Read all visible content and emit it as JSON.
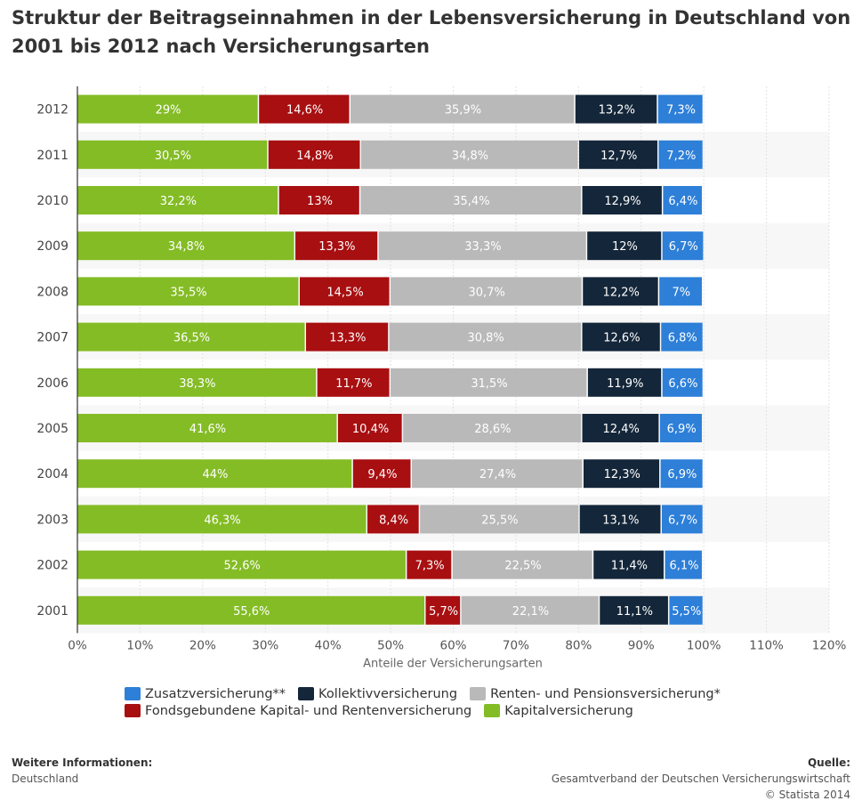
{
  "title": "Struktur der Beitragseinnahmen in der Lebensversicherung in Deutschland von 2001 bis 2012 nach Versicherungsarten",
  "chart_data": {
    "type": "bar",
    "orientation": "horizontal",
    "stacked": true,
    "categories": [
      "2012",
      "2011",
      "2010",
      "2009",
      "2008",
      "2007",
      "2006",
      "2005",
      "2004",
      "2003",
      "2002",
      "2001"
    ],
    "series": [
      {
        "name": "Kapitalversicherung",
        "color": "#84BC25",
        "values": [
          29,
          30.5,
          32.2,
          34.8,
          35.5,
          36.5,
          38.3,
          41.6,
          44,
          46.3,
          52.6,
          55.6
        ],
        "labels": [
          "29%",
          "30,5%",
          "32,2%",
          "34,8%",
          "35,5%",
          "36,5%",
          "38,3%",
          "41,6%",
          "44%",
          "46,3%",
          "52,6%",
          "55,6%"
        ]
      },
      {
        "name": "Fondsgebundene Kapital- und Rentenversicherung",
        "color": "#A80F11",
        "values": [
          14.6,
          14.8,
          13,
          13.3,
          14.5,
          13.3,
          11.7,
          10.4,
          9.4,
          8.4,
          7.3,
          5.7
        ],
        "labels": [
          "14,6%",
          "14,8%",
          "13%",
          "13,3%",
          "14,5%",
          "13,3%",
          "11,7%",
          "10,4%",
          "9,4%",
          "8,4%",
          "7,3%",
          "5,7%"
        ]
      },
      {
        "name": "Renten- und Pensionsversicherung*",
        "color": "#B9B9B9",
        "values": [
          35.9,
          34.8,
          35.4,
          33.3,
          30.7,
          30.8,
          31.5,
          28.6,
          27.4,
          25.5,
          22.5,
          22.1
        ],
        "labels": [
          "35,9%",
          "34,8%",
          "35,4%",
          "33,3%",
          "30,7%",
          "30,8%",
          "31,5%",
          "28,6%",
          "27,4%",
          "25,5%",
          "22,5%",
          "22,1%"
        ]
      },
      {
        "name": "Kollektivversicherung",
        "color": "#142639",
        "values": [
          13.2,
          12.7,
          12.9,
          12,
          12.2,
          12.6,
          11.9,
          12.4,
          12.3,
          13.1,
          11.4,
          11.1
        ],
        "labels": [
          "13,2%",
          "12,7%",
          "12,9%",
          "12%",
          "12,2%",
          "12,6%",
          "11,9%",
          "12,4%",
          "12,3%",
          "13,1%",
          "11,4%",
          "11,1%"
        ]
      },
      {
        "name": "Zusatzversicherung**",
        "color": "#2D7FD8",
        "values": [
          7.3,
          7.2,
          6.4,
          6.7,
          7,
          6.8,
          6.6,
          6.9,
          6.9,
          6.7,
          6.1,
          5.5
        ],
        "labels": [
          "7,3%",
          "7,2%",
          "6,4%",
          "6,7%",
          "7%",
          "6,8%",
          "6,6%",
          "6,9%",
          "6,9%",
          "6,7%",
          "6,1%",
          "5,5%"
        ]
      }
    ],
    "xlabel": "Anteile der Versicherungsarten",
    "ylabel": "",
    "xlim": [
      0,
      120
    ],
    "xticks": [
      "0%",
      "10%",
      "20%",
      "30%",
      "40%",
      "50%",
      "60%",
      "70%",
      "80%",
      "90%",
      "100%",
      "110%",
      "120%"
    ],
    "grid": true,
    "legend_position": "bottom"
  },
  "legend": {
    "row1": [
      {
        "label": "Zusatzversicherung**",
        "color": "#2D7FD8"
      },
      {
        "label": "Kollektivversicherung",
        "color": "#142639"
      },
      {
        "label": "Renten- und Pensionsversicherung*",
        "color": "#B9B9B9"
      }
    ],
    "row2": [
      {
        "label": "Fondsgebundene Kapital- und Rentenversicherung",
        "color": "#A80F11"
      },
      {
        "label": "Kapitalversicherung",
        "color": "#84BC25"
      }
    ]
  },
  "footer": {
    "info_heading": "Weitere Informationen:",
    "info_text": "Deutschland",
    "source_heading": "Quelle:",
    "source_text": "Gesamtverband der Deutschen Versicherungswirtschaft",
    "copyright": "© Statista 2014"
  }
}
